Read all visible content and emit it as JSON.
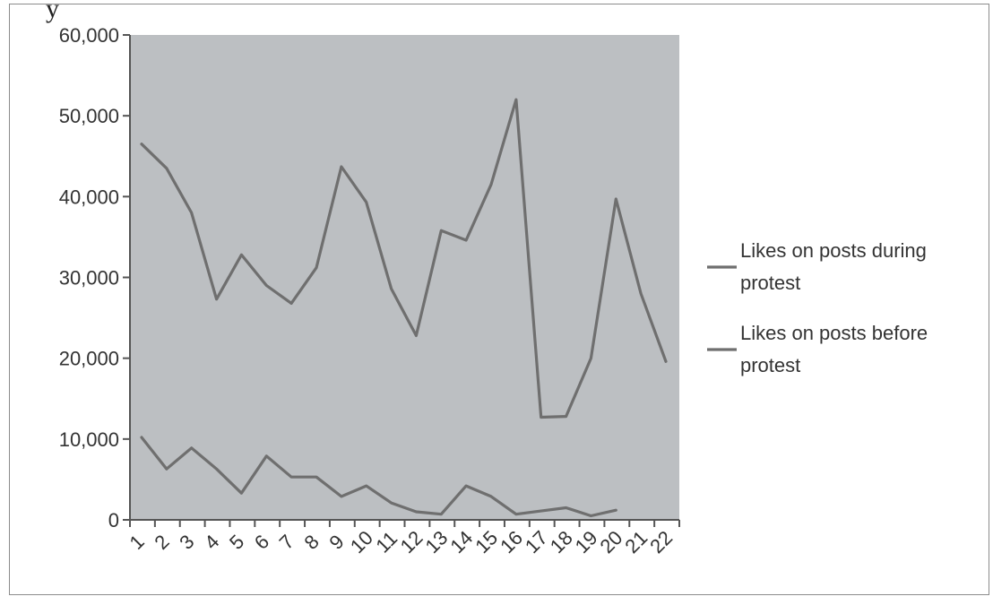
{
  "caption_fragment": "y",
  "chart_data": {
    "type": "line",
    "title": "",
    "xlabel": "",
    "ylabel": "",
    "ylim": [
      0,
      60000
    ],
    "yticks": [
      "60,000",
      "50,000",
      "40,000",
      "30,000",
      "20,000",
      "10,000",
      "0"
    ],
    "ytick_values": [
      60000,
      50000,
      40000,
      30000,
      20000,
      10000,
      0
    ],
    "categories": [
      "1",
      "2",
      "3",
      "4",
      "5",
      "6",
      "7",
      "8",
      "9",
      "10",
      "11",
      "12",
      "13",
      "14",
      "15",
      "16",
      "17",
      "18",
      "19",
      "20",
      "21",
      "22"
    ],
    "grid": false,
    "legend_position": "right",
    "plot_background": "#bcbfc2",
    "series": [
      {
        "name_lines": [
          "Likes on posts during",
          "protest"
        ],
        "color": "#6f6f6f",
        "values": [
          46500,
          43500,
          38000,
          27300,
          32800,
          29000,
          26800,
          31200,
          43700,
          39300,
          28600,
          22800,
          35800,
          34600,
          41500,
          52000,
          12700,
          12800,
          20000,
          39700,
          28000,
          19600
        ]
      },
      {
        "name_lines": [
          "Likes on posts before",
          "protest"
        ],
        "color": "#6f6f6f",
        "values": [
          10200,
          6300,
          8900,
          6300,
          3300,
          7900,
          5300,
          5300,
          2900,
          4200,
          2100,
          1000,
          700,
          4200,
          2900,
          700,
          1100,
          1500,
          500,
          1200,
          null,
          null
        ]
      }
    ]
  }
}
